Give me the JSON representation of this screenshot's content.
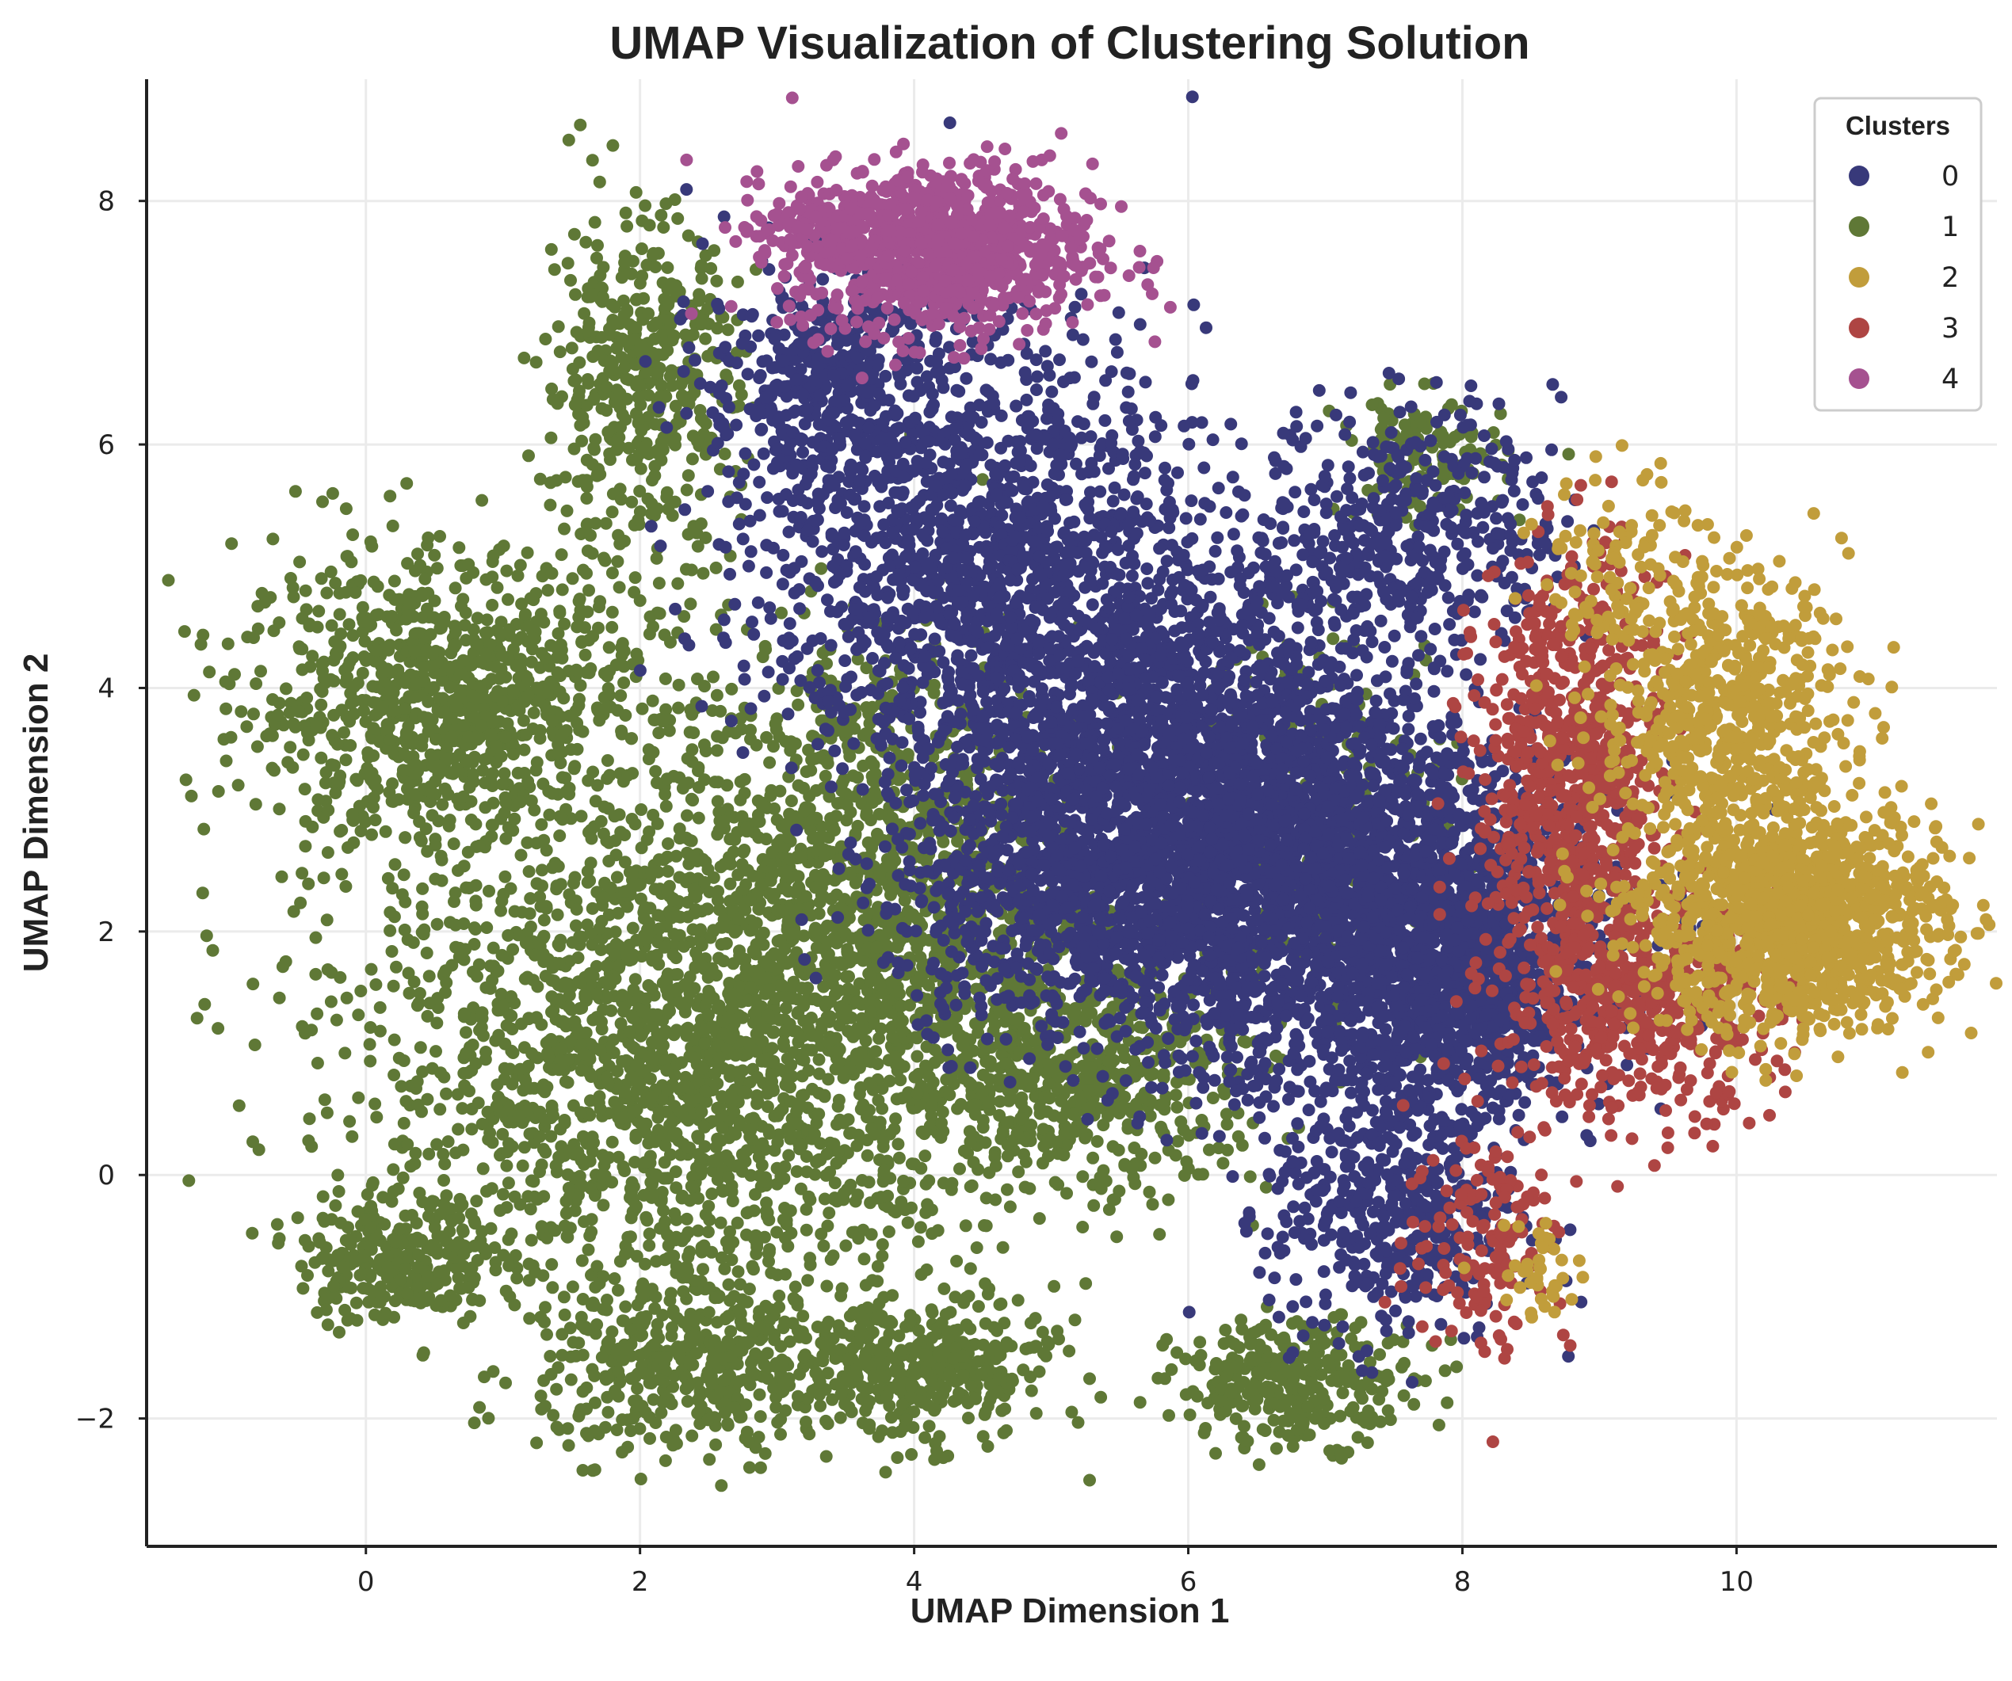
{
  "chart_data": {
    "type": "scatter",
    "title": "UMAP Visualization of Clustering Solution",
    "xlabel": "UMAP Dimension 1",
    "ylabel": "UMAP Dimension 2",
    "xlim": [
      -1.6,
      11.9
    ],
    "ylim": [
      -3.05,
      9.0
    ],
    "xticks": [
      0,
      2,
      4,
      6,
      8,
      10
    ],
    "yticks": [
      -2,
      0,
      2,
      4,
      6,
      8
    ],
    "xtick_labels": [
      "0",
      "2",
      "4",
      "6",
      "8",
      "10"
    ],
    "ytick_labels": [
      "−2",
      "0",
      "2",
      "4",
      "6",
      "8"
    ],
    "grid": true,
    "legend_position": "top-right",
    "legend_title": "Clusters",
    "series": [
      {
        "name": "0",
        "color": "#38397a",
        "regions": [
          {
            "cx": 4.5,
            "cy": 5.0,
            "sx": 0.8,
            "sy": 0.9,
            "n": 1500
          },
          {
            "cx": 6.0,
            "cy": 3.3,
            "sx": 0.85,
            "sy": 0.8,
            "n": 2000
          },
          {
            "cx": 7.3,
            "cy": 2.1,
            "sx": 0.9,
            "sy": 0.75,
            "n": 2200
          },
          {
            "cx": 3.4,
            "cy": 6.5,
            "sx": 0.45,
            "sy": 0.5,
            "n": 500
          },
          {
            "cx": 7.6,
            "cy": 5.3,
            "sx": 0.55,
            "sy": 0.5,
            "n": 450
          },
          {
            "cx": 7.5,
            "cy": -0.3,
            "sx": 0.45,
            "sy": 0.55,
            "n": 450
          },
          {
            "cx": 8.0,
            "cy": 1.6,
            "sx": 0.4,
            "sy": 0.5,
            "n": 500
          },
          {
            "cx": 5.2,
            "cy": 2.3,
            "sx": 0.7,
            "sy": 0.6,
            "n": 700
          }
        ]
      },
      {
        "name": "1",
        "color": "#5f7836",
        "regions": [
          {
            "cx": 0.6,
            "cy": 3.9,
            "sx": 0.75,
            "sy": 0.6,
            "n": 1000
          },
          {
            "cx": 2.3,
            "cy": 1.0,
            "sx": 1.15,
            "sy": 1.1,
            "n": 2200
          },
          {
            "cx": 3.7,
            "cy": 2.5,
            "sx": 0.75,
            "sy": 1.0,
            "n": 1000
          },
          {
            "cx": 0.2,
            "cy": -0.7,
            "sx": 0.35,
            "sy": 0.25,
            "n": 250
          },
          {
            "cx": 2.4,
            "cy": -1.6,
            "sx": 0.55,
            "sy": 0.35,
            "n": 400
          },
          {
            "cx": 4.0,
            "cy": -1.6,
            "sx": 0.5,
            "sy": 0.3,
            "n": 400
          },
          {
            "cx": 6.8,
            "cy": -1.7,
            "sx": 0.45,
            "sy": 0.25,
            "n": 300
          },
          {
            "cx": 2.0,
            "cy": 6.5,
            "sx": 0.35,
            "sy": 0.7,
            "n": 450
          },
          {
            "cx": 5.2,
            "cy": 0.8,
            "sx": 0.7,
            "sy": 0.5,
            "n": 600
          },
          {
            "cx": 7.7,
            "cy": 5.9,
            "sx": 0.3,
            "sy": 0.25,
            "n": 120
          },
          {
            "cx": 7.0,
            "cy": 3.0,
            "sx": 0.5,
            "sy": 0.8,
            "n": 200
          }
        ]
      },
      {
        "name": "2",
        "color": "#c19d3b",
        "regions": [
          {
            "cx": 10.4,
            "cy": 2.1,
            "sx": 0.55,
            "sy": 0.45,
            "n": 1300
          },
          {
            "cx": 9.9,
            "cy": 3.8,
            "sx": 0.45,
            "sy": 0.6,
            "n": 600
          },
          {
            "cx": 9.2,
            "cy": 5.0,
            "sx": 0.3,
            "sy": 0.4,
            "n": 100
          },
          {
            "cx": 8.6,
            "cy": -0.8,
            "sx": 0.2,
            "sy": 0.2,
            "n": 40
          }
        ]
      },
      {
        "name": "3",
        "color": "#ae4543",
        "regions": [
          {
            "cx": 8.8,
            "cy": 3.2,
            "sx": 0.35,
            "sy": 0.9,
            "n": 800
          },
          {
            "cx": 9.3,
            "cy": 1.4,
            "sx": 0.5,
            "sy": 0.45,
            "n": 500
          },
          {
            "cx": 8.2,
            "cy": -0.5,
            "sx": 0.3,
            "sy": 0.5,
            "n": 150
          }
        ]
      },
      {
        "name": "4",
        "color": "#a55190",
        "regions": [
          {
            "cx": 4.2,
            "cy": 7.6,
            "sx": 0.55,
            "sy": 0.35,
            "n": 900
          },
          {
            "cx": 3.3,
            "cy": 7.8,
            "sx": 0.3,
            "sy": 0.15,
            "n": 120
          }
        ]
      }
    ]
  }
}
